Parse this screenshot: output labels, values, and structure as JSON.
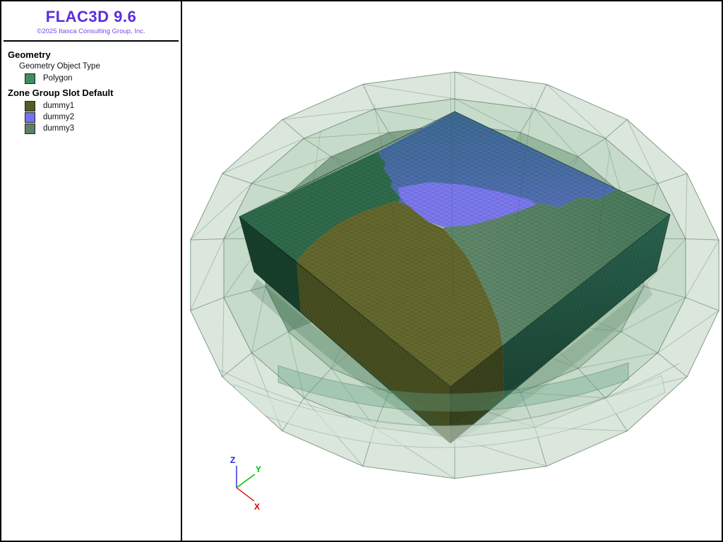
{
  "panel": {
    "title": "FLAC3D 9.6",
    "copyright": "©2025 Itasca Consulting Group, Inc.",
    "title_color": "#5b2ce0",
    "copyright_color": "#7a45ec"
  },
  "legend": {
    "geometry_heading": "Geometry",
    "geometry_subheading": "Geometry Object Type",
    "geometry_items": [
      {
        "label": "Polygon",
        "color": "#3d8f5f"
      }
    ],
    "zone_heading": "Zone Group Slot Default",
    "zone_items": [
      {
        "label": "dummy1",
        "color": "#575c25"
      },
      {
        "label": "dummy2",
        "color": "#7372f5"
      },
      {
        "label": "dummy3",
        "color": "#5d8068"
      }
    ]
  },
  "viewport": {
    "axis_triad": {
      "x_label": "X",
      "y_label": "Y",
      "z_label": "Z",
      "x_color": "#dd0000",
      "y_color": "#00bb00",
      "z_color": "#2222dd"
    },
    "scene": {
      "geometry_object": "Polygon",
      "dome_colors": {
        "outer": "#dbe7dc",
        "mid": "#c7dbca",
        "inner": "#a6c3ab"
      },
      "zone_colors": {
        "dummy1": "#64682e",
        "dummy2": "#7b79ee",
        "dummy3": "#5c8368"
      }
    }
  }
}
